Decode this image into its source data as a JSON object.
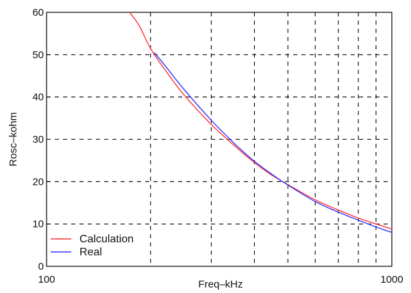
{
  "chart_data": {
    "type": "line",
    "title": "",
    "xlabel": "Freq–kHz",
    "ylabel": "Rosc–kohm",
    "x_scale": "log",
    "xlim": [
      100,
      1000
    ],
    "ylim": [
      0,
      60
    ],
    "x_tick_labels": [
      "100",
      "1000"
    ],
    "y_ticks": [
      0,
      10,
      20,
      30,
      40,
      50,
      60
    ],
    "y_tick_labels": [
      "0",
      "10",
      "20",
      "30",
      "40",
      "50",
      "60"
    ],
    "x_grid_values": [
      200,
      300,
      400,
      500,
      600,
      700,
      800,
      900
    ],
    "y_grid_values": [
      10,
      20,
      30,
      40,
      50
    ],
    "grid": true,
    "legend_position": "bottom-left",
    "series": [
      {
        "name": "Calculation",
        "color": "#ff3333",
        "x": [
          174,
          185,
          200,
          220,
          250,
          300,
          350,
          400,
          450,
          500,
          600,
          700,
          800,
          900,
          1000
        ],
        "y": [
          60,
          57,
          51.5,
          46.5,
          40.5,
          33.5,
          28.5,
          24.5,
          21.5,
          19.3,
          15.7,
          13.3,
          11.4,
          10,
          8.8
        ]
      },
      {
        "name": "Real",
        "color": "#3333ff",
        "x": [
          205,
          220,
          250,
          300,
          350,
          400,
          450,
          500,
          600,
          700,
          800,
          900,
          1000
        ],
        "y": [
          50.5,
          47.5,
          41.8,
          34.5,
          29,
          24.8,
          21.7,
          19.2,
          15.3,
          12.8,
          10.9,
          9.3,
          8
        ]
      }
    ]
  }
}
